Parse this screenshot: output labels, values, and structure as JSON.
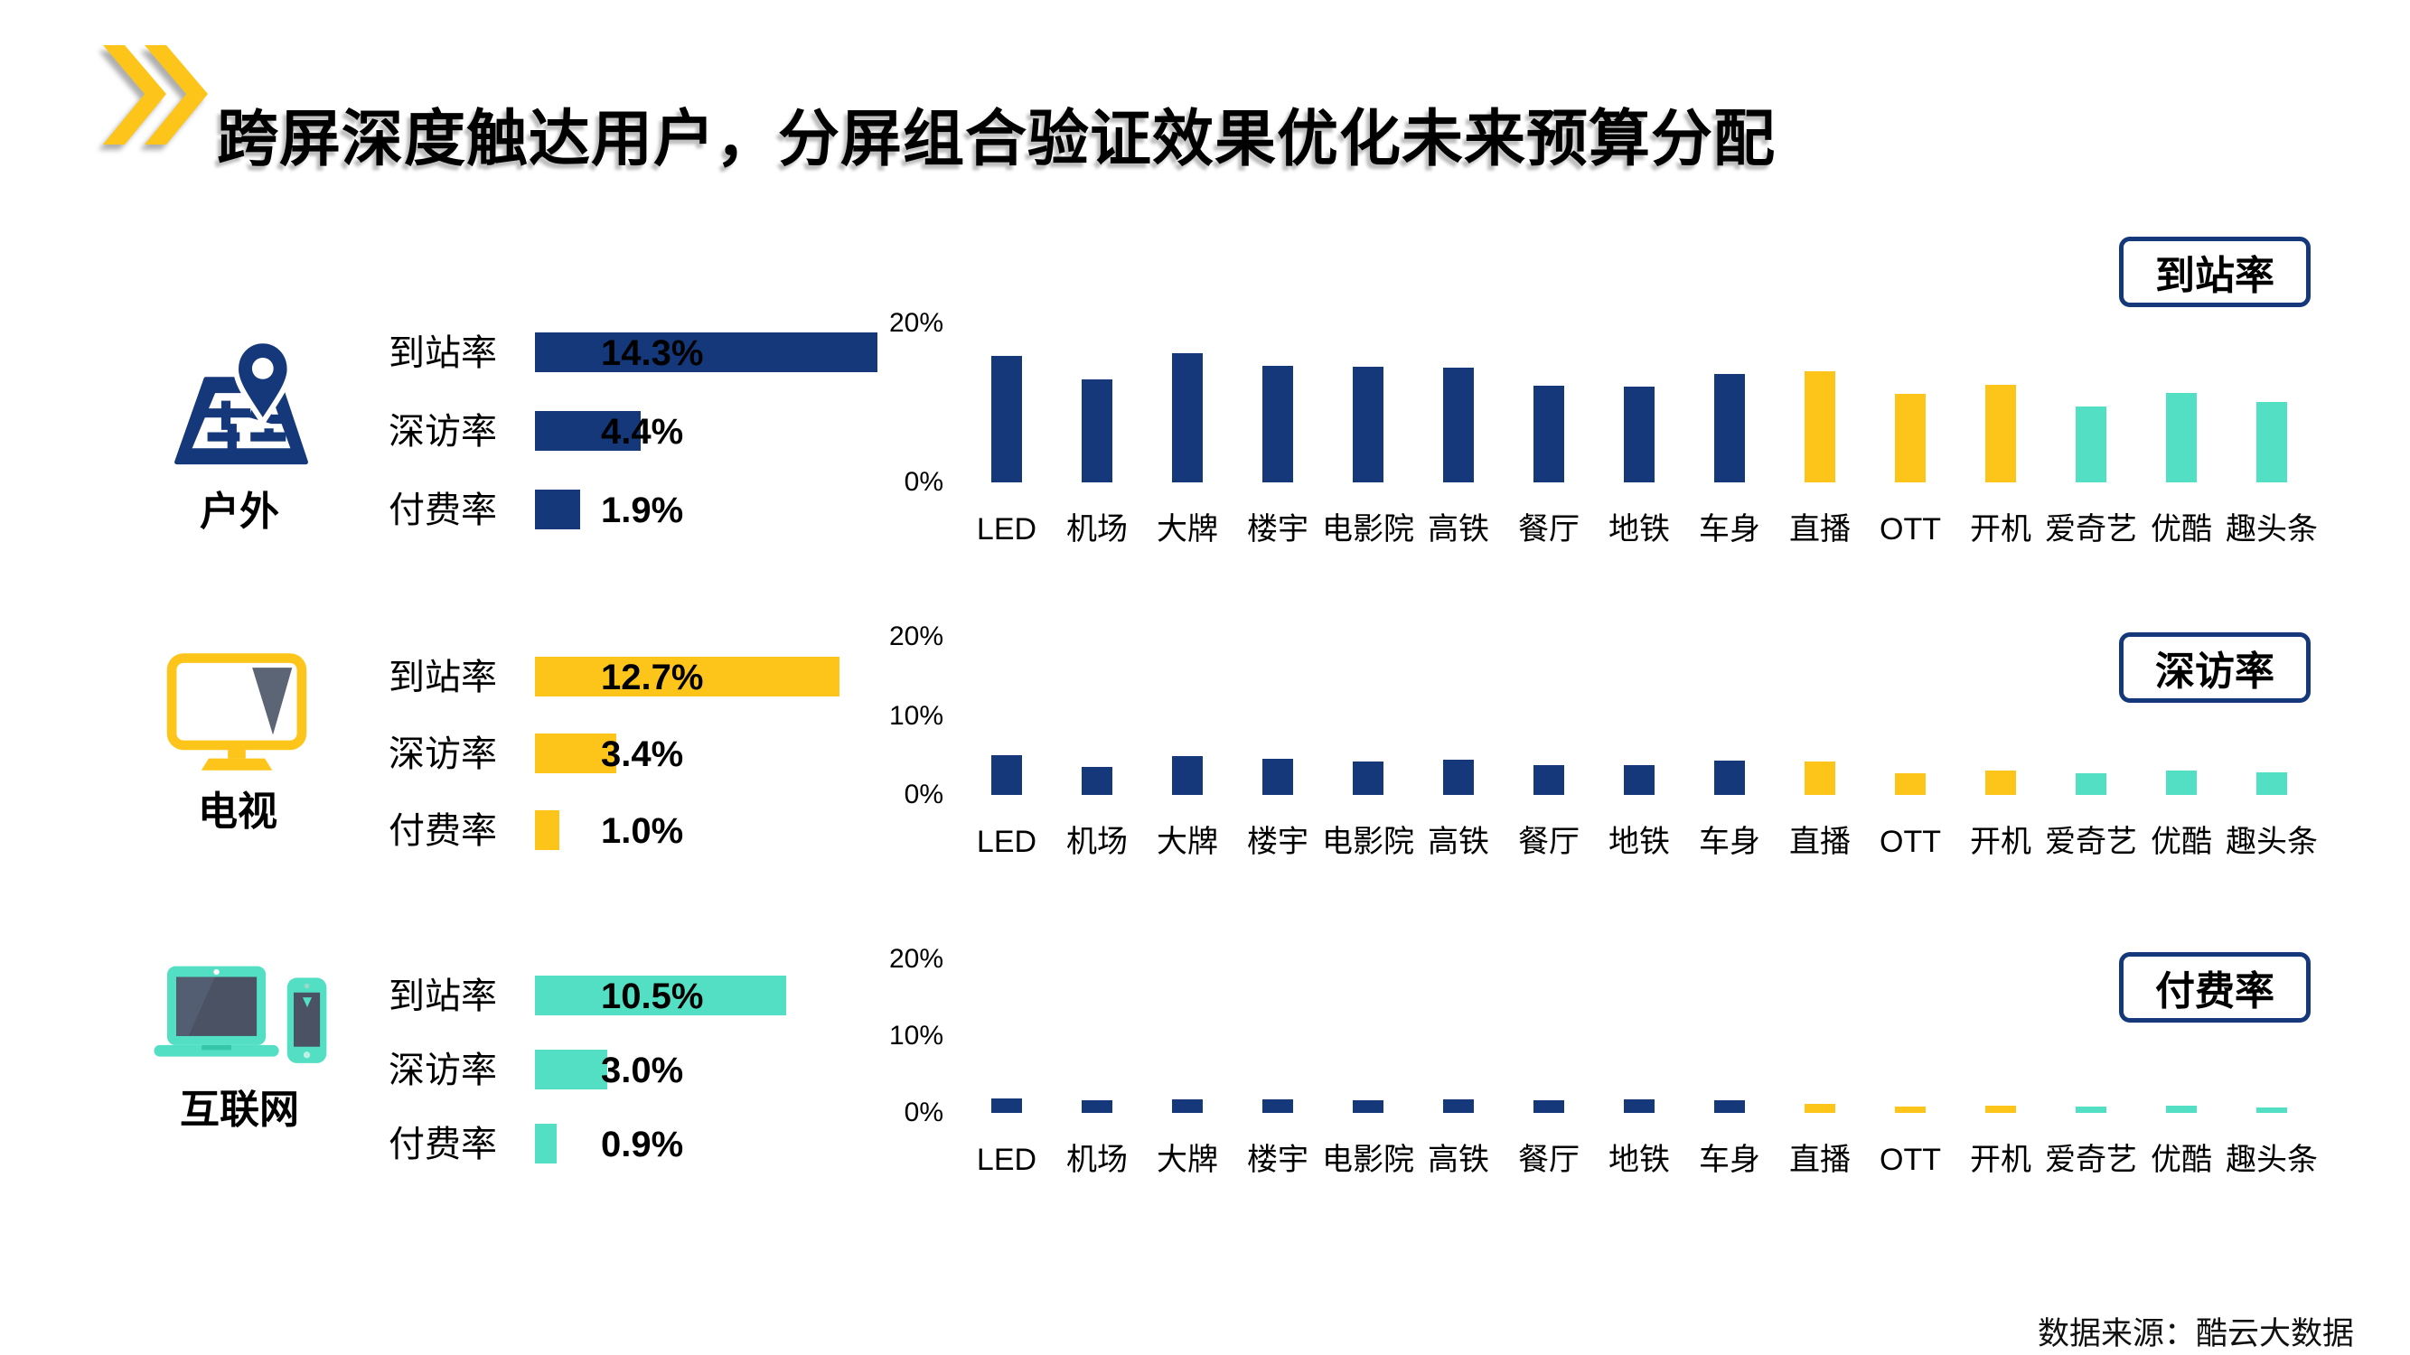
{
  "title": "跨屏深度触达用户，分屏组合验证效果优化未来预算分配",
  "source": "数据来源：酷云大数据",
  "colors": {
    "navy": "#143879",
    "yellow": "#FDC51A",
    "teal": "#53DFC4",
    "slate": "#5C6575",
    "badge_border": "#143879"
  },
  "left_panel": {
    "groups": [
      {
        "label": "户外",
        "icon": "map-pin-icon",
        "color": "#143879",
        "metrics": [
          {
            "label": "到站率",
            "value": "14.3%"
          },
          {
            "label": "深访率",
            "value": "4.4%"
          },
          {
            "label": "付费率",
            "value": "1.9%"
          }
        ]
      },
      {
        "label": "电视",
        "icon": "tv-icon",
        "color": "#FDC51A",
        "metrics": [
          {
            "label": "到站率",
            "value": "12.7%"
          },
          {
            "label": "深访率",
            "value": "3.4%"
          },
          {
            "label": "付费率",
            "value": "1.0%"
          }
        ]
      },
      {
        "label": "互联网",
        "icon": "devices-icon",
        "color": "#53DFC4",
        "metrics": [
          {
            "label": "到站率",
            "value": "10.5%"
          },
          {
            "label": "深访率",
            "value": "3.0%"
          },
          {
            "label": "付费率",
            "value": "0.9%"
          }
        ]
      }
    ]
  },
  "bar_colors": [
    "#143879",
    "#143879",
    "#143879",
    "#143879",
    "#143879",
    "#143879",
    "#143879",
    "#143879",
    "#143879",
    "#FDC51A",
    "#FDC51A",
    "#FDC51A",
    "#53DFC4",
    "#53DFC4",
    "#53DFC4"
  ],
  "chart_data": [
    {
      "type": "bar",
      "title": "到站率",
      "categories": [
        "LED",
        "机场",
        "大牌",
        "楼宇",
        "电影院",
        "高铁",
        "餐厅",
        "地铁",
        "车身",
        "直播",
        "OTT",
        "开机",
        "爱奇艺",
        "优酷",
        "趣头条"
      ],
      "values": [
        15.9,
        12.9,
        16.3,
        14.7,
        14.6,
        14.4,
        12.2,
        12.1,
        13.6,
        14.0,
        11.1,
        12.3,
        9.5,
        11.3,
        10.1
      ],
      "yticks": [
        "20%",
        "0%"
      ],
      "ylim": [
        0,
        20
      ],
      "xlabel": "",
      "ylabel": "",
      "grid": false,
      "legend": "none"
    },
    {
      "type": "bar",
      "title": "深访率",
      "categories": [
        "LED",
        "机场",
        "大牌",
        "楼宇",
        "电影院",
        "高铁",
        "餐厅",
        "地铁",
        "车身",
        "直播",
        "OTT",
        "开机",
        "爱奇艺",
        "优酷",
        "趣头条"
      ],
      "values": [
        5.0,
        3.5,
        4.9,
        4.6,
        4.2,
        4.5,
        3.8,
        3.8,
        4.3,
        4.2,
        2.8,
        3.1,
        2.7,
        3.1,
        2.9
      ],
      "yticks": [
        "20%",
        "10%",
        "0%"
      ],
      "ylim": [
        0,
        20
      ],
      "xlabel": "",
      "ylabel": "",
      "grid": false,
      "legend": "none"
    },
    {
      "type": "bar",
      "title": "付费率",
      "categories": [
        "LED",
        "机场",
        "大牌",
        "楼宇",
        "电影院",
        "高铁",
        "餐厅",
        "地铁",
        "车身",
        "直播",
        "OTT",
        "开机",
        "爱奇艺",
        "优酷",
        "趣头条"
      ],
      "values": [
        1.9,
        1.6,
        1.8,
        1.8,
        1.7,
        1.8,
        1.7,
        1.8,
        1.6,
        1.2,
        0.8,
        0.9,
        0.8,
        0.9,
        0.7
      ],
      "yticks": [
        "20%",
        "10%",
        "0%"
      ],
      "ylim": [
        0,
        20
      ],
      "xlabel": "",
      "ylabel": "",
      "grid": false,
      "legend": "none"
    }
  ]
}
